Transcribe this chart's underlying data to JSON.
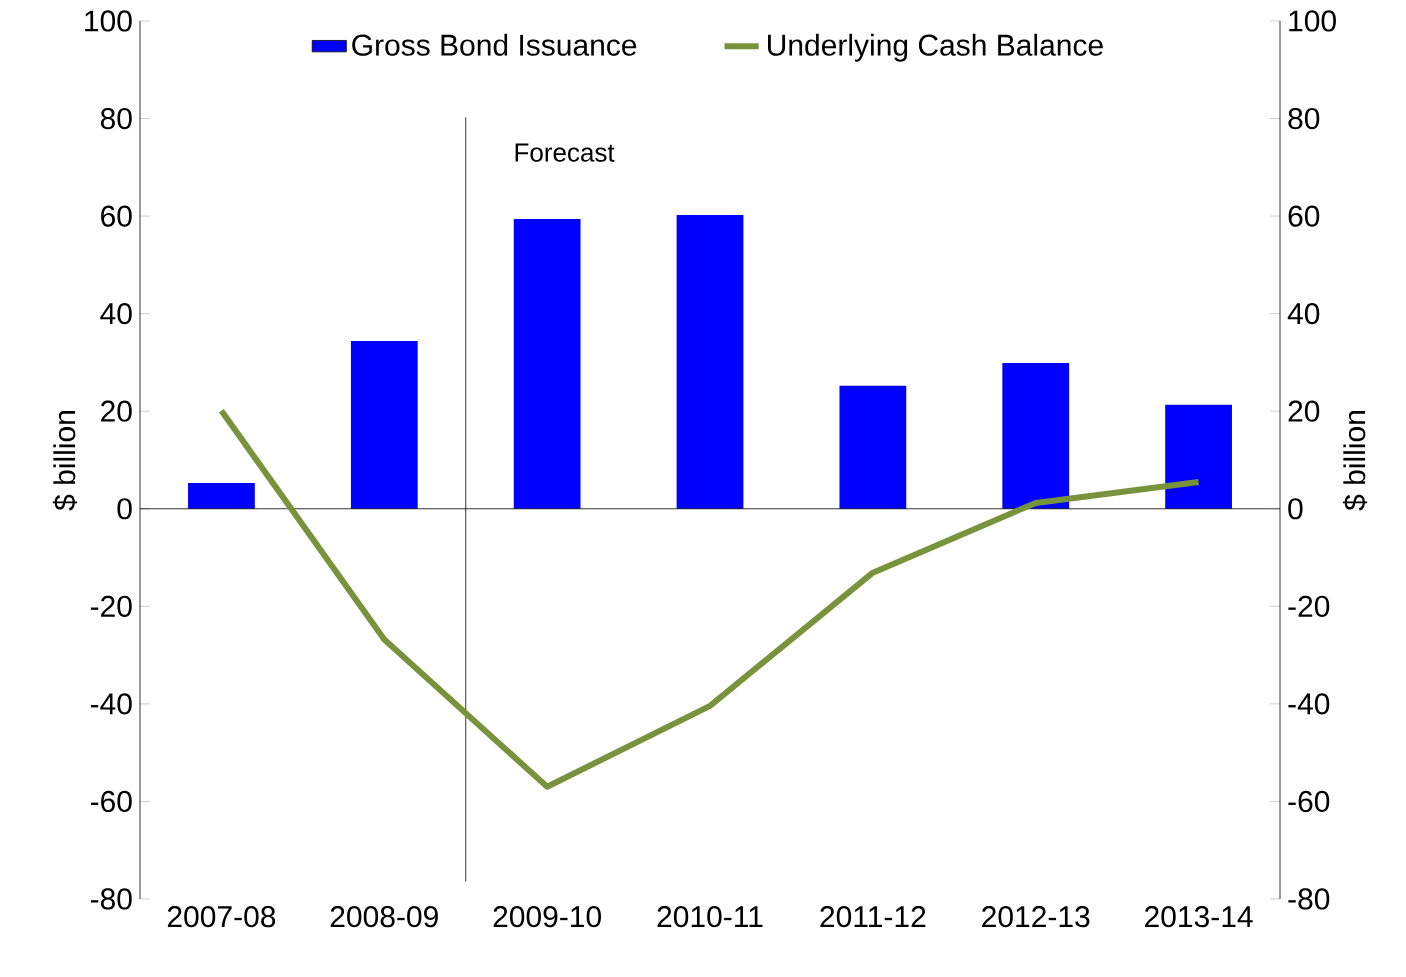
{
  "chart_data": {
    "type": "bar",
    "categories": [
      "2007-08",
      "2008-09",
      "2009-10",
      "2010-11",
      "2011-12",
      "2012-13",
      "2013-14"
    ],
    "series": [
      {
        "name": "Gross Bond Issuance",
        "color": "#0000ff",
        "values": [
          5.3,
          34.4,
          59.4,
          60.2,
          25.2,
          29.9,
          21.3
        ]
      },
      {
        "name": "Underlying Cash Balance",
        "type": "line",
        "axis": "y2",
        "color": "#77933c",
        "values": [
          20.1,
          -26.8,
          -57.0,
          -40.4,
          -13.1,
          1.2,
          5.5
        ]
      }
    ],
    "ylabel": "$ billion",
    "y2label": "$ billion",
    "ylim": [
      -80,
      100
    ],
    "yticks": [
      -80,
      -60,
      -40,
      -20,
      0,
      20,
      40,
      60,
      80,
      100
    ],
    "y2lim": [
      -80,
      100
    ],
    "y2ticks": [
      -80,
      -60,
      -40,
      -20,
      0,
      20,
      40,
      60,
      80,
      100
    ],
    "annotations": [
      "Forecast"
    ],
    "legend": "top",
    "marker": "none",
    "line_style": "solid"
  }
}
